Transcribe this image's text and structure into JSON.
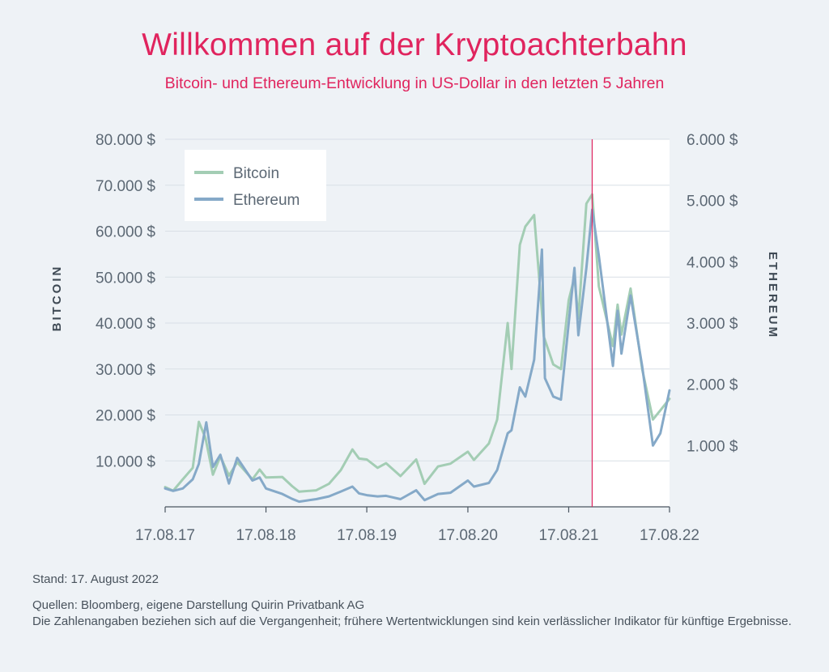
{
  "title": "Willkommen auf der Kryptoachterbahn",
  "subtitle": "Bitcoin- und Ethereum-Entwicklung in US-Dollar in den letzten 5 Jahren",
  "footer": {
    "stand": "Stand: 17. August 2022",
    "sources": "Quellen: Bloomberg, eigene Darstellung Quirin Privatbank AG",
    "disclaimer": "Die Zahlenangaben beziehen sich auf die Vergangenheit; frühere Wertentwicklungen sind kein verlässlicher Indikator für künftige Ergebnisse."
  },
  "chart_data": {
    "type": "line",
    "ylabel_left": "BITCOIN",
    "ylabel_right": "ETHEREUM",
    "x_range": [
      "2017-08-17",
      "2022-08-17"
    ],
    "x_ticks": [
      {
        "date": "2017-08-17",
        "label": "17.08.17"
      },
      {
        "date": "2018-08-17",
        "label": "17.08.18"
      },
      {
        "date": "2019-08-17",
        "label": "17.08.19"
      },
      {
        "date": "2020-08-17",
        "label": "17.08.20"
      },
      {
        "date": "2021-08-17",
        "label": "17.08.21"
      },
      {
        "date": "2022-08-17",
        "label": "17.08.22"
      }
    ],
    "y_left": {
      "min": 0,
      "max": 80000,
      "ticks": [
        10000,
        20000,
        30000,
        40000,
        50000,
        60000,
        70000,
        80000
      ],
      "tick_labels": [
        "10.000 $",
        "20.000 $",
        "30.000 $",
        "40.000 $",
        "50.000 $",
        "60.000 $",
        "70.000 $",
        "80.000 $"
      ]
    },
    "y_right": {
      "min": 0,
      "max": 6000,
      "ticks": [
        1000,
        2000,
        3000,
        4000,
        5000,
        6000
      ],
      "tick_labels": [
        "1.000 $",
        "2.000 $",
        "3.000 $",
        "4.000 $",
        "5.000 $",
        "6.000 $"
      ]
    },
    "grid": "horizontal",
    "legend_position": "top-left",
    "marker_line_date": "2021-11-10",
    "shaded_after_marker": true,
    "series": [
      {
        "name": "Bitcoin",
        "axis": "left",
        "color": "#a3cdb4",
        "points": [
          [
            "2017-08-17",
            4300
          ],
          [
            "2017-09-15",
            3500
          ],
          [
            "2017-10-20",
            6000
          ],
          [
            "2017-11-25",
            8500
          ],
          [
            "2017-12-17",
            18500
          ],
          [
            "2018-01-10",
            15000
          ],
          [
            "2018-02-06",
            7000
          ],
          [
            "2018-03-05",
            11000
          ],
          [
            "2018-04-05",
            6800
          ],
          [
            "2018-05-05",
            9700
          ],
          [
            "2018-06-29",
            6000
          ],
          [
            "2018-07-25",
            8100
          ],
          [
            "2018-08-17",
            6400
          ],
          [
            "2018-10-15",
            6500
          ],
          [
            "2018-11-20",
            4500
          ],
          [
            "2018-12-15",
            3300
          ],
          [
            "2019-02-15",
            3600
          ],
          [
            "2019-04-02",
            5000
          ],
          [
            "2019-05-15",
            8000
          ],
          [
            "2019-06-26",
            12500
          ],
          [
            "2019-07-20",
            10500
          ],
          [
            "2019-08-17",
            10300
          ],
          [
            "2019-09-25",
            8500
          ],
          [
            "2019-10-26",
            9500
          ],
          [
            "2019-12-17",
            6700
          ],
          [
            "2020-02-12",
            10300
          ],
          [
            "2020-03-13",
            5000
          ],
          [
            "2020-05-01",
            8800
          ],
          [
            "2020-06-15",
            9400
          ],
          [
            "2020-08-17",
            12000
          ],
          [
            "2020-09-08",
            10200
          ],
          [
            "2020-11-01",
            13800
          ],
          [
            "2020-12-01",
            19000
          ],
          [
            "2021-01-08",
            40000
          ],
          [
            "2021-01-22",
            30000
          ],
          [
            "2021-02-21",
            57000
          ],
          [
            "2021-03-13",
            61000
          ],
          [
            "2021-04-14",
            63500
          ],
          [
            "2021-05-19",
            37000
          ],
          [
            "2021-06-22",
            31000
          ],
          [
            "2021-07-20",
            30000
          ],
          [
            "2021-08-17",
            45000
          ],
          [
            "2021-09-07",
            50000
          ],
          [
            "2021-09-21",
            41000
          ],
          [
            "2021-10-20",
            66000
          ],
          [
            "2021-11-10",
            68000
          ],
          [
            "2021-12-04",
            48000
          ],
          [
            "2022-01-24",
            35000
          ],
          [
            "2022-02-10",
            44000
          ],
          [
            "2022-02-24",
            37500
          ],
          [
            "2022-03-29",
            47500
          ],
          [
            "2022-05-10",
            30000
          ],
          [
            "2022-06-18",
            19000
          ],
          [
            "2022-07-15",
            21000
          ],
          [
            "2022-08-17",
            23500
          ]
        ]
      },
      {
        "name": "Ethereum",
        "axis": "right",
        "color": "#85a9c8",
        "points": [
          [
            "2017-08-17",
            300
          ],
          [
            "2017-09-15",
            260
          ],
          [
            "2017-10-20",
            300
          ],
          [
            "2017-11-25",
            450
          ],
          [
            "2017-12-17",
            700
          ],
          [
            "2018-01-13",
            1380
          ],
          [
            "2018-02-06",
            650
          ],
          [
            "2018-03-05",
            850
          ],
          [
            "2018-04-05",
            380
          ],
          [
            "2018-05-05",
            800
          ],
          [
            "2018-06-29",
            430
          ],
          [
            "2018-07-25",
            480
          ],
          [
            "2018-08-17",
            300
          ],
          [
            "2018-10-15",
            210
          ],
          [
            "2018-11-20",
            130
          ],
          [
            "2018-12-15",
            85
          ],
          [
            "2019-02-15",
            125
          ],
          [
            "2019-04-02",
            170
          ],
          [
            "2019-05-15",
            250
          ],
          [
            "2019-06-26",
            330
          ],
          [
            "2019-07-20",
            220
          ],
          [
            "2019-08-17",
            190
          ],
          [
            "2019-09-25",
            170
          ],
          [
            "2019-10-26",
            180
          ],
          [
            "2019-12-17",
            125
          ],
          [
            "2020-02-12",
            270
          ],
          [
            "2020-03-13",
            110
          ],
          [
            "2020-05-01",
            210
          ],
          [
            "2020-06-15",
            230
          ],
          [
            "2020-08-17",
            430
          ],
          [
            "2020-09-08",
            330
          ],
          [
            "2020-11-01",
            390
          ],
          [
            "2020-12-01",
            600
          ],
          [
            "2021-01-08",
            1200
          ],
          [
            "2021-01-22",
            1250
          ],
          [
            "2021-02-21",
            1950
          ],
          [
            "2021-03-13",
            1800
          ],
          [
            "2021-04-14",
            2400
          ],
          [
            "2021-05-12",
            4200
          ],
          [
            "2021-05-23",
            2100
          ],
          [
            "2021-06-22",
            1800
          ],
          [
            "2021-07-20",
            1750
          ],
          [
            "2021-08-17",
            3000
          ],
          [
            "2021-09-07",
            3900
          ],
          [
            "2021-09-21",
            2800
          ],
          [
            "2021-10-20",
            3900
          ],
          [
            "2021-11-10",
            4850
          ],
          [
            "2021-12-04",
            4100
          ],
          [
            "2022-01-24",
            2300
          ],
          [
            "2022-02-10",
            3200
          ],
          [
            "2022-02-24",
            2500
          ],
          [
            "2022-03-29",
            3450
          ],
          [
            "2022-05-10",
            2300
          ],
          [
            "2022-06-18",
            1000
          ],
          [
            "2022-07-15",
            1200
          ],
          [
            "2022-08-17",
            1900
          ]
        ]
      }
    ]
  }
}
